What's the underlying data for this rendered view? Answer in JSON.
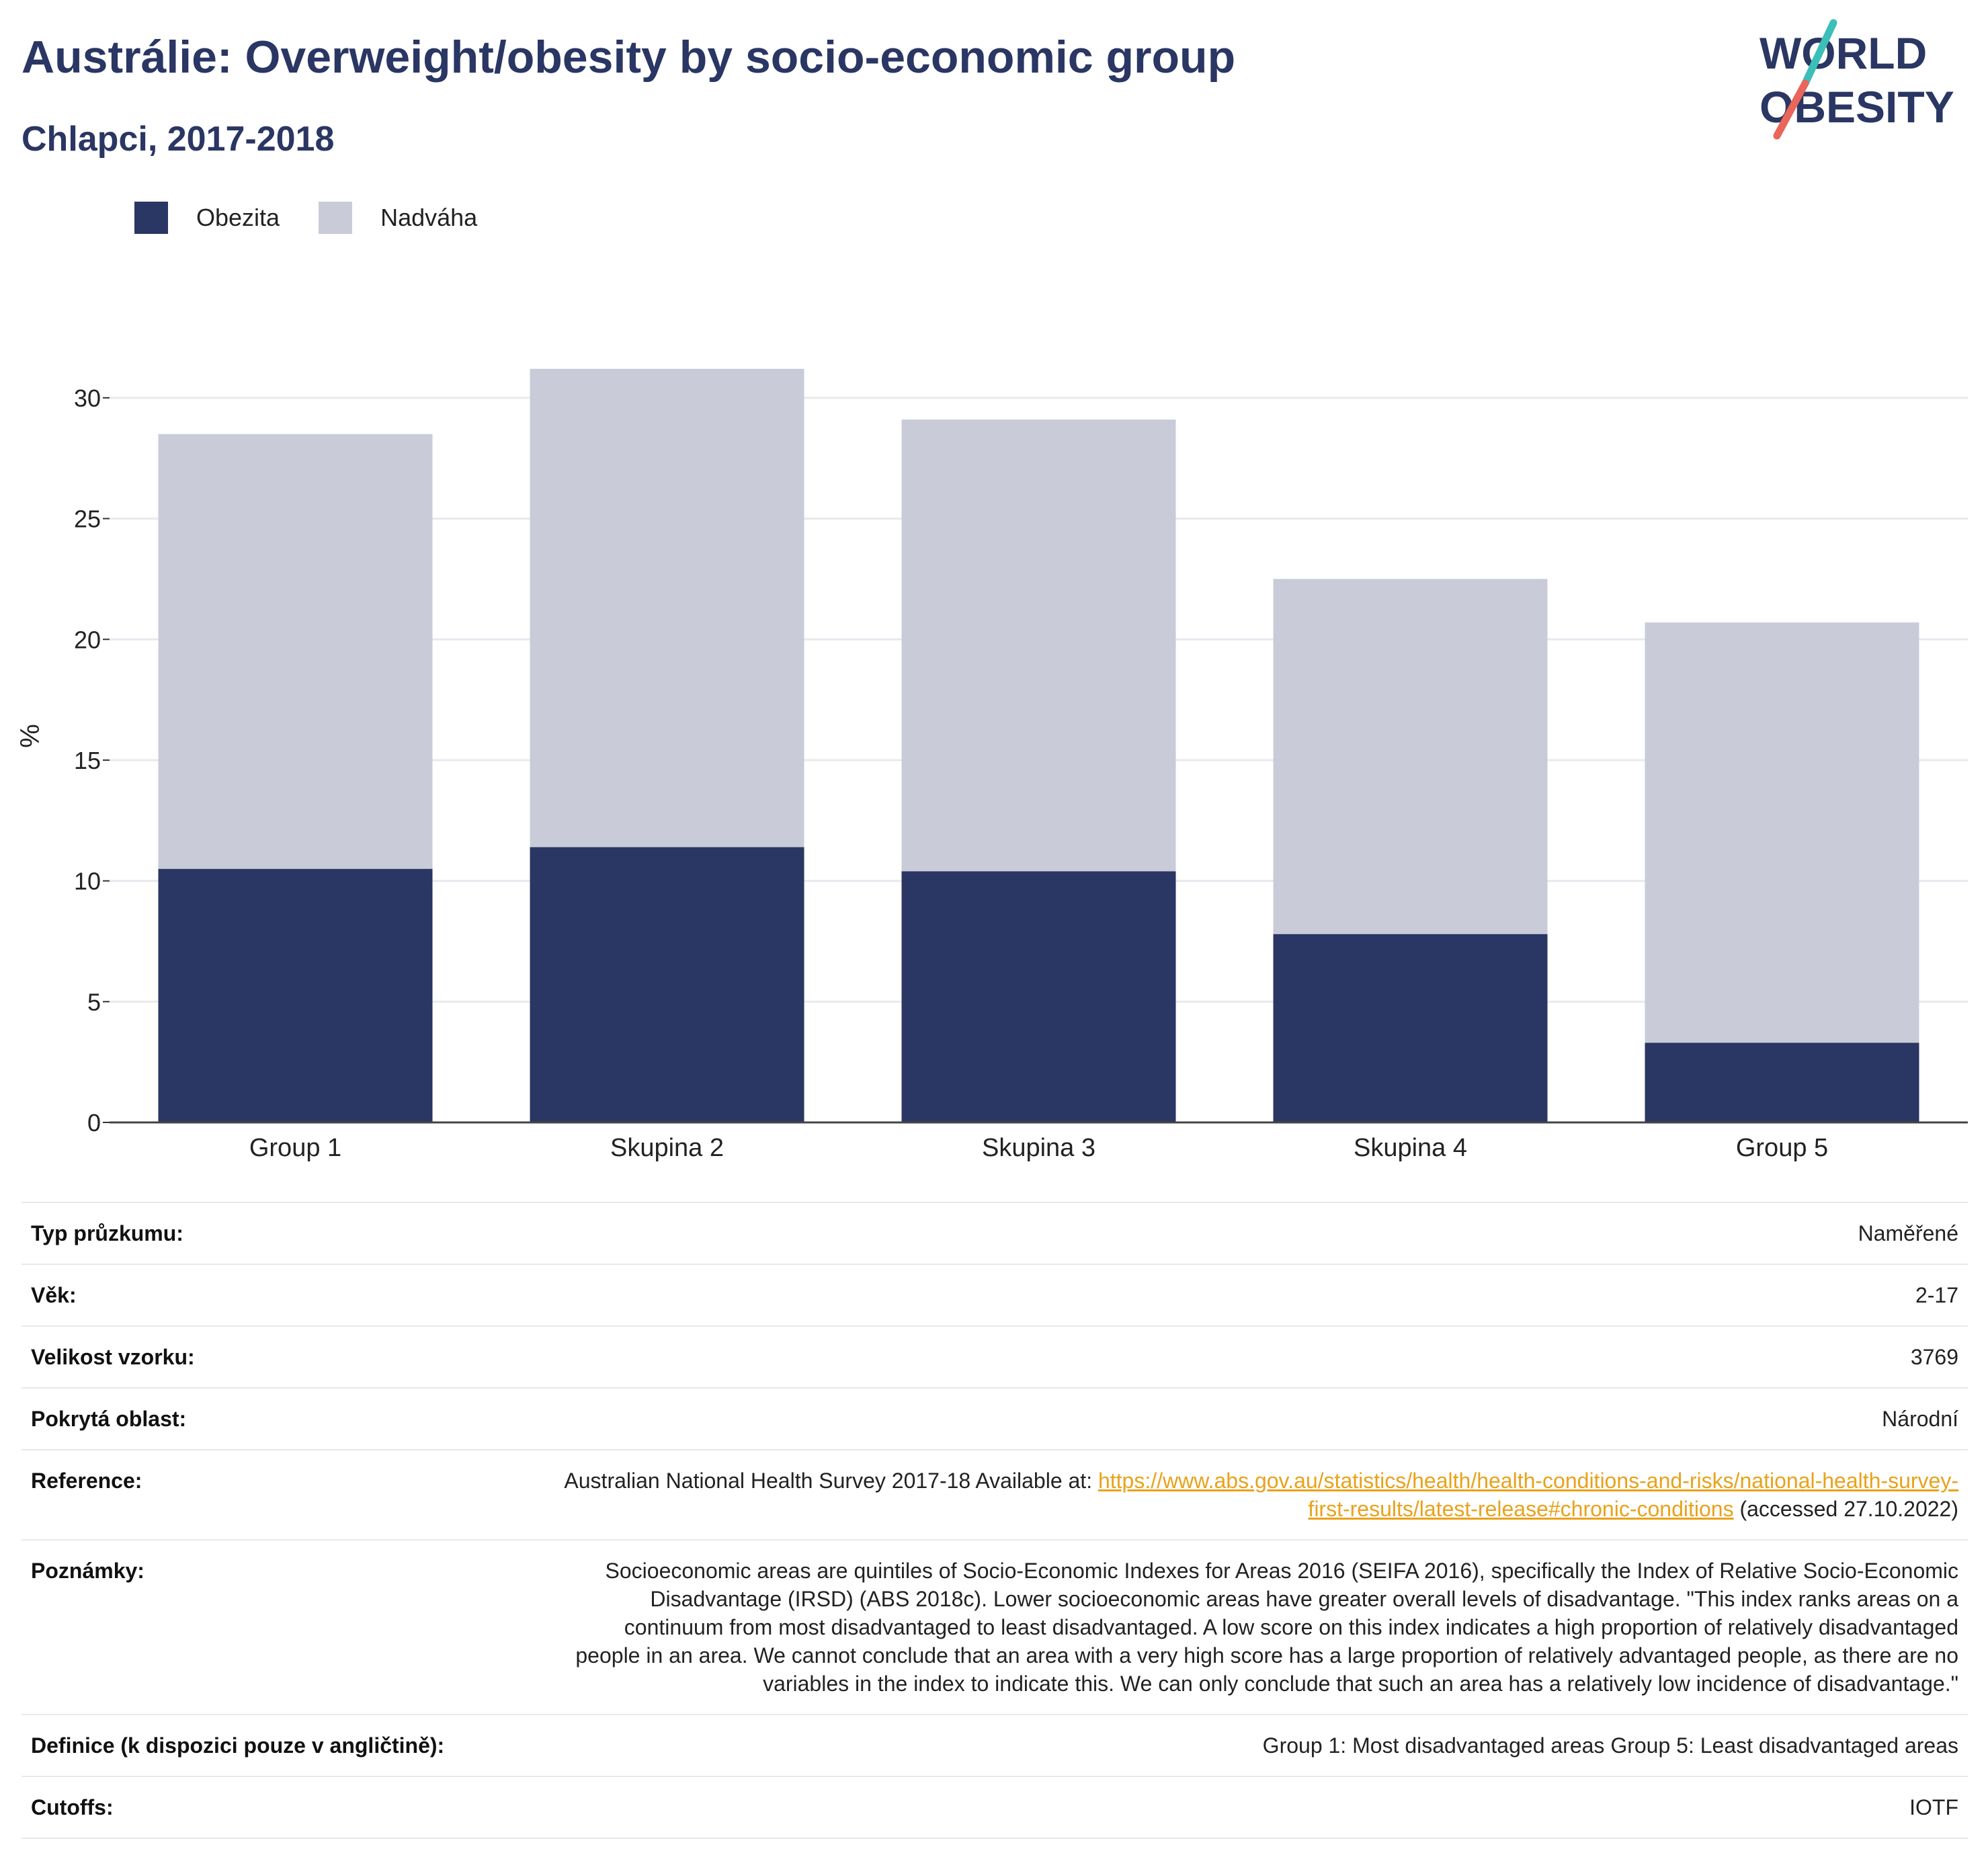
{
  "header": {
    "title": "Austrálie: Overweight/obesity by socio-economic group",
    "subtitle": "Chlapci, 2017-2018"
  },
  "logo": {
    "line1": "WORLD",
    "line2": "OBESITY",
    "colors": {
      "text": "#2a3663",
      "slash_top": "#3bbfb8",
      "slash_bottom": "#e8665a"
    }
  },
  "legend": [
    {
      "label": "Obezita",
      "color": "#2a3663"
    },
    {
      "label": "Nadváha",
      "color": "#c9ccd8"
    }
  ],
  "chart_data": {
    "type": "bar",
    "stacked": true,
    "categories": [
      "Group 1",
      "Skupina 2",
      "Skupina 3",
      "Skupina 4",
      "Group 5"
    ],
    "series": [
      {
        "name": "Obezita",
        "color": "#2a3663",
        "values": [
          10.5,
          11.4,
          10.4,
          7.8,
          3.3
        ]
      },
      {
        "name": "Nadváha",
        "color": "#c9ccd8",
        "values": [
          18.0,
          19.8,
          18.7,
          14.7,
          17.4
        ]
      }
    ],
    "ylabel": "%",
    "xlabel": "",
    "ylim": [
      0,
      32
    ],
    "yticks": [
      0,
      5,
      10,
      15,
      20,
      25,
      30
    ],
    "grid": true,
    "legend_position": "top-left"
  },
  "meta": {
    "rows": [
      {
        "key": "Typ průzkumu:",
        "value": "Naměřené"
      },
      {
        "key": "Věk:",
        "value": "2-17"
      },
      {
        "key": "Velikost vzorku:",
        "value": "3769"
      },
      {
        "key": "Pokrytá oblast:",
        "value": "Národní"
      }
    ],
    "reference": {
      "key": "Reference:",
      "before": "Australian National Health Survey 2017-18 Available at: ",
      "link": "https://www.abs.gov.au/statistics/health/health-conditions-and-risks/national-health-survey-first-results/latest-release#chronic-conditions",
      "after": " (accessed 27.10.2022)"
    },
    "notes": {
      "key": "Poznámky:",
      "value": "Socioeconomic areas are quintiles of Socio-Economic Indexes for Areas 2016 (SEIFA 2016), specifically the Index of Relative Socio-Economic Disadvantage (IRSD) (ABS 2018c). Lower socioeconomic areas have greater overall levels of disadvantage. \"This index ranks areas on a continuum from most disadvantaged to least disadvantaged. A low score on this index indicates a high proportion of relatively disadvantaged people in an area. We cannot conclude that an area with a very high score has a large proportion of relatively advantaged people, as there are no variables in the index to indicate this. We can only conclude that such an area has a relatively low incidence of disadvantage.\""
    },
    "definition": {
      "key": "Definice (k dispozici pouze v angličtině):",
      "value": "Group 1: Most disadvantaged areas Group 5: Least disadvantaged areas"
    },
    "cutoffs": {
      "key": "Cutoffs:",
      "value": "IOTF"
    }
  }
}
